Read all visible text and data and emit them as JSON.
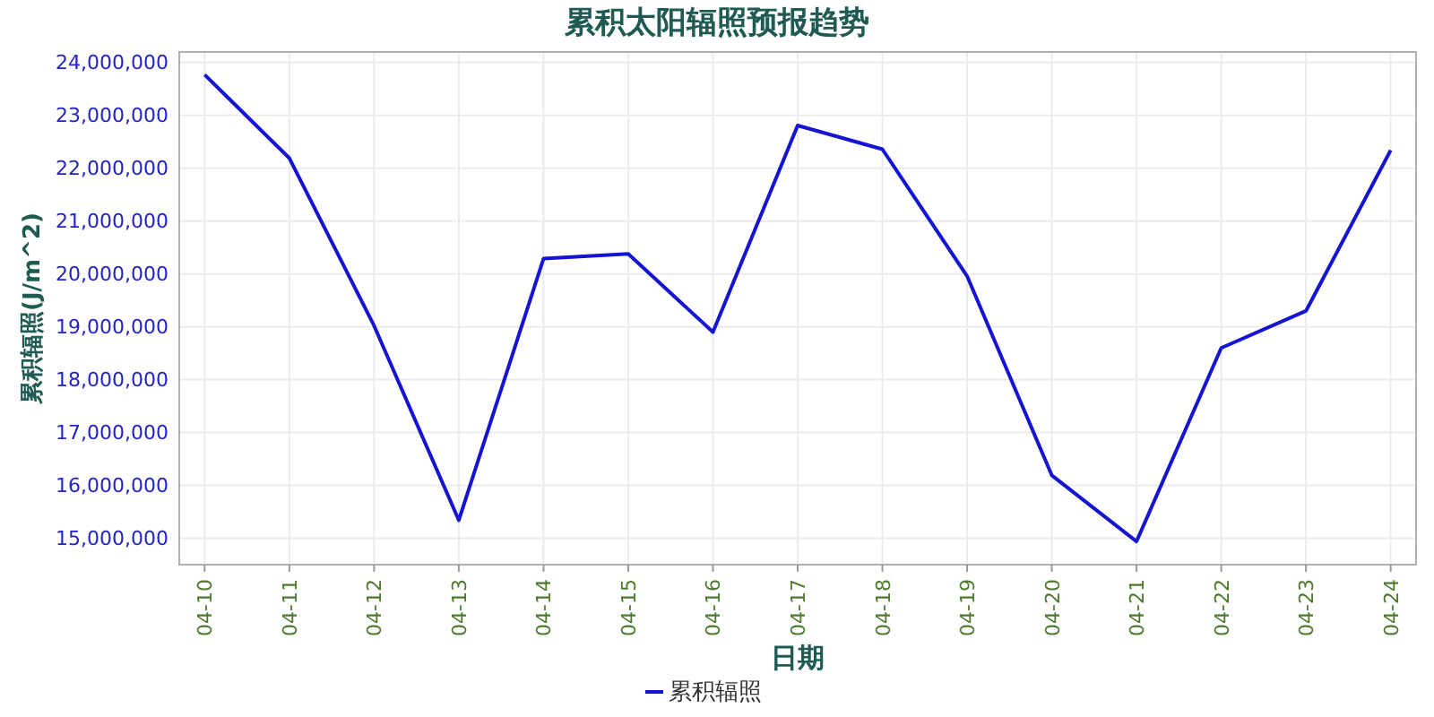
{
  "chart_data": {
    "type": "line",
    "title": "累积太阳辐照预报趋势",
    "xlabel": "日期",
    "ylabel": "累积辐照(J/m^2)",
    "categories": [
      "04-10",
      "04-11",
      "04-12",
      "04-13",
      "04-14",
      "04-15",
      "04-16",
      "04-17",
      "04-18",
      "04-19",
      "04-20",
      "04-21",
      "04-22",
      "04-23",
      "04-24"
    ],
    "series": [
      {
        "name": "累积辐照",
        "color": "#1414d2",
        "values": [
          23770000,
          22190000,
          19020000,
          15340000,
          20290000,
          20380000,
          18900000,
          22810000,
          22360000,
          19960000,
          16190000,
          14940000,
          18600000,
          19300000,
          22340000
        ]
      }
    ],
    "ylim": [
      14500000,
      24200000
    ],
    "yticks": [
      {
        "value": 15000000,
        "label": "15,000,000"
      },
      {
        "value": 16000000,
        "label": "16,000,000"
      },
      {
        "value": 17000000,
        "label": "17,000,000"
      },
      {
        "value": 18000000,
        "label": "18,000,000"
      },
      {
        "value": 19000000,
        "label": "19,000,000"
      },
      {
        "value": 20000000,
        "label": "20,000,000"
      },
      {
        "value": 21000000,
        "label": "21,000,000"
      },
      {
        "value": 22000000,
        "label": "22,000,000"
      },
      {
        "value": 23000000,
        "label": "23,000,000"
      },
      {
        "value": 24000000,
        "label": "24,000,000"
      }
    ],
    "grid": true,
    "legend": "bottom",
    "marker": "none",
    "line_style": "solid"
  }
}
